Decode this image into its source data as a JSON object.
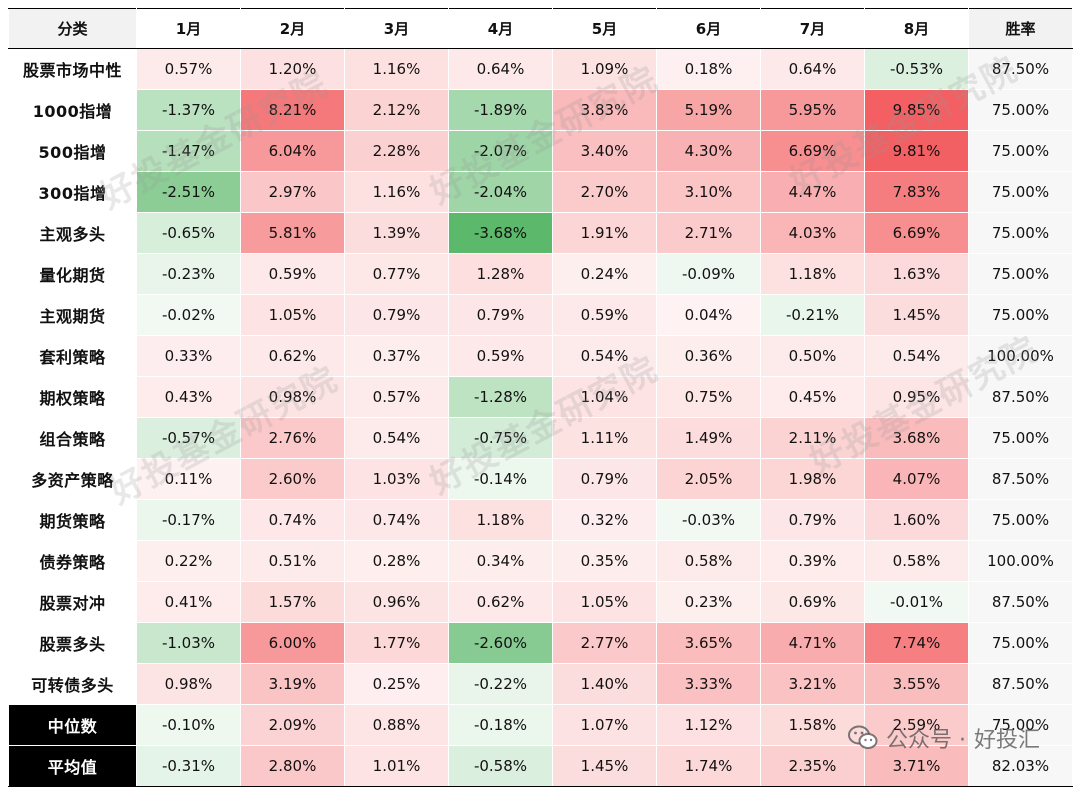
{
  "chart_data": {
    "type": "table",
    "columns": [
      "分类",
      "1月",
      "2月",
      "3月",
      "4月",
      "5月",
      "6月",
      "7月",
      "8月",
      "胜率"
    ],
    "rows": [
      {
        "name": "股票市场中性",
        "values": [
          0.57,
          1.2,
          1.16,
          0.64,
          1.09,
          0.18,
          0.64,
          -0.53
        ],
        "win_rate": "87.50%"
      },
      {
        "name": "1000指增",
        "values": [
          -1.37,
          8.21,
          2.12,
          -1.89,
          3.83,
          5.19,
          5.95,
          9.85
        ],
        "win_rate": "75.00%"
      },
      {
        "name": "500指增",
        "values": [
          -1.47,
          6.04,
          2.28,
          -2.07,
          3.4,
          4.3,
          6.69,
          9.81
        ],
        "win_rate": "75.00%"
      },
      {
        "name": "300指增",
        "values": [
          -2.51,
          2.97,
          1.16,
          -2.04,
          2.7,
          3.1,
          4.47,
          7.83
        ],
        "win_rate": "75.00%"
      },
      {
        "name": "主观多头",
        "values": [
          -0.65,
          5.81,
          1.39,
          -3.68,
          1.91,
          2.71,
          4.03,
          6.69
        ],
        "win_rate": "75.00%"
      },
      {
        "name": "量化期货",
        "values": [
          -0.23,
          0.59,
          0.77,
          1.28,
          0.24,
          -0.09,
          1.18,
          1.63
        ],
        "win_rate": "75.00%"
      },
      {
        "name": "主观期货",
        "values": [
          -0.02,
          1.05,
          0.79,
          0.79,
          0.59,
          0.04,
          -0.21,
          1.45
        ],
        "win_rate": "75.00%"
      },
      {
        "name": "套利策略",
        "values": [
          0.33,
          0.62,
          0.37,
          0.59,
          0.54,
          0.36,
          0.5,
          0.54
        ],
        "win_rate": "100.00%"
      },
      {
        "name": "期权策略",
        "values": [
          0.43,
          0.98,
          0.57,
          -1.28,
          1.04,
          0.75,
          0.45,
          0.95
        ],
        "win_rate": "87.50%"
      },
      {
        "name": "组合策略",
        "values": [
          -0.57,
          2.76,
          0.54,
          -0.75,
          1.11,
          1.49,
          2.11,
          3.68
        ],
        "win_rate": "75.00%"
      },
      {
        "name": "多资产策略",
        "values": [
          0.11,
          2.6,
          1.03,
          -0.14,
          0.79,
          2.05,
          1.98,
          4.07
        ],
        "win_rate": "87.50%"
      },
      {
        "name": "期货策略",
        "values": [
          -0.17,
          0.74,
          0.74,
          1.18,
          0.32,
          -0.03,
          0.79,
          1.6
        ],
        "win_rate": "75.00%"
      },
      {
        "name": "债券策略",
        "values": [
          0.22,
          0.51,
          0.28,
          0.34,
          0.35,
          0.58,
          0.39,
          0.58
        ],
        "win_rate": "100.00%"
      },
      {
        "name": "股票对冲",
        "values": [
          0.41,
          1.57,
          0.96,
          0.62,
          1.05,
          0.23,
          0.69,
          -0.01
        ],
        "win_rate": "87.50%"
      },
      {
        "name": "股票多头",
        "values": [
          -1.03,
          6.0,
          1.77,
          -2.6,
          2.77,
          3.65,
          4.71,
          7.74
        ],
        "win_rate": "75.00%"
      },
      {
        "name": "可转债多头",
        "values": [
          0.98,
          3.19,
          0.25,
          -0.22,
          1.4,
          3.33,
          3.21,
          3.55
        ],
        "win_rate": "87.50%"
      },
      {
        "name": "中位数",
        "values": [
          -0.1,
          2.09,
          0.88,
          -0.18,
          1.07,
          1.12,
          1.58,
          2.59
        ],
        "win_rate": "75.00%",
        "dark": true
      },
      {
        "name": "平均值",
        "values": [
          -0.31,
          2.8,
          1.01,
          -0.58,
          1.45,
          1.74,
          2.35,
          3.71
        ],
        "win_rate": "82.03%",
        "dark": true
      }
    ],
    "value_unit": "%",
    "color_scale": {
      "negative": "#5cb86a",
      "zero": "#ffffff",
      "positive": "#f35f62",
      "max_abs_neg": 3.68,
      "max_abs_pos": 9.85
    },
    "header_colors": {
      "category": "#f2f2f2",
      "month": "#ffffff",
      "win_rate": "#f2f2f2"
    },
    "win_rate_bg": "#f7f7f7"
  },
  "watermark_text": "好投基金研究院",
  "footer": {
    "brand_prefix": "公众号 · ",
    "brand_name": "好投汇"
  }
}
